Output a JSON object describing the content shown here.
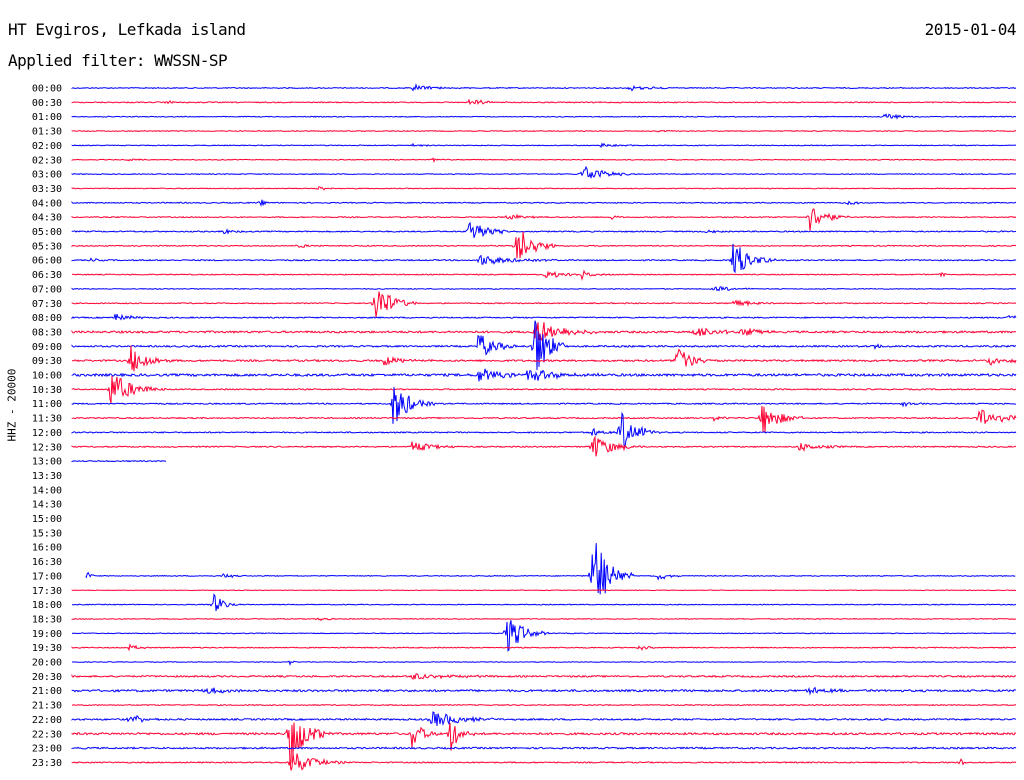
{
  "header": {
    "station": "HT Evgiros, Lefkada island",
    "date": "2015-01-04",
    "filter": "Applied filter: WWSSN-SP"
  },
  "chart_data": {
    "type": "line",
    "title": "HT Evgiros, Lefkada island",
    "date": "2015-01-04",
    "filter": "WWSSN-SP",
    "ylabel": "HHZ - 20000",
    "colors": {
      "even_row": "#0000ff",
      "odd_row": "#ff0033"
    },
    "rows": [
      {
        "time": "00:00",
        "start": 0,
        "end": 1,
        "noise": 0.5,
        "events": [
          {
            "x": 0.36,
            "amp": 0.35,
            "width": 0.02
          },
          {
            "x": 0.59,
            "amp": 0.3,
            "width": 0.02
          }
        ]
      },
      {
        "time": "00:30",
        "start": 0,
        "end": 1,
        "noise": 0.5,
        "events": [
          {
            "x": 0.42,
            "amp": 0.4,
            "width": 0.015
          },
          {
            "x": 0.1,
            "amp": 0.2,
            "width": 0.01
          }
        ]
      },
      {
        "time": "01:00",
        "start": 0,
        "end": 1,
        "noise": 0.4,
        "events": [
          {
            "x": 0.86,
            "amp": 0.45,
            "width": 0.015
          }
        ]
      },
      {
        "time": "01:30",
        "start": 0,
        "end": 1,
        "noise": 0.4,
        "events": [
          {
            "x": 0.62,
            "amp": 0.15,
            "width": 0.01
          }
        ]
      },
      {
        "time": "02:00",
        "start": 0,
        "end": 1,
        "noise": 0.4,
        "events": [
          {
            "x": 0.36,
            "amp": 0.2,
            "width": 0.01
          },
          {
            "x": 0.56,
            "amp": 0.2,
            "width": 0.02
          }
        ]
      },
      {
        "time": "02:30",
        "start": 0,
        "end": 1,
        "noise": 0.4,
        "events": [
          {
            "x": 0.06,
            "amp": 0.2,
            "width": 0.01
          },
          {
            "x": 0.38,
            "amp": 0.2,
            "width": 0.01
          }
        ]
      },
      {
        "time": "03:00",
        "start": 0,
        "end": 1,
        "noise": 0.4,
        "events": [
          {
            "x": 0.54,
            "amp": 1.0,
            "width": 0.02
          }
        ]
      },
      {
        "time": "03:30",
        "start": 0,
        "end": 1,
        "noise": 0.4,
        "events": [
          {
            "x": 0.26,
            "amp": 0.25,
            "width": 0.015
          }
        ]
      },
      {
        "time": "04:00",
        "start": 0,
        "end": 1,
        "noise": 0.5,
        "events": [
          {
            "x": 0.2,
            "amp": 0.4,
            "width": 0.005
          },
          {
            "x": 0.82,
            "amp": 0.2,
            "width": 0.02
          }
        ]
      },
      {
        "time": "04:30",
        "start": 0,
        "end": 1,
        "noise": 0.5,
        "events": [
          {
            "x": 0.46,
            "amp": 0.4,
            "width": 0.015
          },
          {
            "x": 0.57,
            "amp": 0.4,
            "width": 0.005
          },
          {
            "x": 0.78,
            "amp": 1.6,
            "width": 0.015
          }
        ]
      },
      {
        "time": "05:00",
        "start": 0,
        "end": 1,
        "noise": 0.6,
        "events": [
          {
            "x": 0.16,
            "amp": 0.3,
            "width": 0.01
          },
          {
            "x": 0.42,
            "amp": 1.6,
            "width": 0.015
          },
          {
            "x": 0.67,
            "amp": 0.3,
            "width": 0.01
          }
        ]
      },
      {
        "time": "05:30",
        "start": 0,
        "end": 1,
        "noise": 0.5,
        "events": [
          {
            "x": 0.24,
            "amp": 0.3,
            "width": 0.01
          },
          {
            "x": 0.47,
            "amp": 2.5,
            "width": 0.015
          }
        ]
      },
      {
        "time": "06:00",
        "start": 0,
        "end": 1,
        "noise": 0.6,
        "events": [
          {
            "x": 0.02,
            "amp": 0.3,
            "width": 0.005
          },
          {
            "x": 0.43,
            "amp": 0.6,
            "width": 0.03
          },
          {
            "x": 0.7,
            "amp": 2.3,
            "width": 0.015
          }
        ]
      },
      {
        "time": "06:30",
        "start": 0,
        "end": 1,
        "noise": 0.5,
        "events": [
          {
            "x": 0.5,
            "amp": 0.4,
            "width": 0.02
          },
          {
            "x": 0.54,
            "amp": 0.4,
            "width": 0.01
          },
          {
            "x": 0.92,
            "amp": 0.3,
            "width": 0.005
          }
        ]
      },
      {
        "time": "07:00",
        "start": 0,
        "end": 1,
        "noise": 0.4,
        "events": [
          {
            "x": 0.68,
            "amp": 0.3,
            "width": 0.02
          }
        ]
      },
      {
        "time": "07:30",
        "start": 0,
        "end": 1,
        "noise": 0.5,
        "events": [
          {
            "x": 0.32,
            "amp": 2.5,
            "width": 0.015
          },
          {
            "x": 0.7,
            "amp": 0.4,
            "width": 0.02
          }
        ]
      },
      {
        "time": "08:00",
        "start": 0,
        "end": 1,
        "noise": 0.6,
        "events": [
          {
            "x": 0.045,
            "amp": 0.5,
            "width": 0.015
          },
          {
            "x": 0.99,
            "amp": 0.3,
            "width": 0.01
          }
        ]
      },
      {
        "time": "08:30",
        "start": 0,
        "end": 1,
        "noise": 1.0,
        "events": [
          {
            "x": 0.49,
            "amp": 1.4,
            "width": 0.025
          },
          {
            "x": 0.66,
            "amp": 0.6,
            "width": 0.02
          },
          {
            "x": 0.71,
            "amp": 0.6,
            "width": 0.015
          }
        ]
      },
      {
        "time": "09:00",
        "start": 0,
        "end": 1,
        "noise": 0.8,
        "events": [
          {
            "x": 0.43,
            "amp": 1.5,
            "width": 0.015
          },
          {
            "x": 0.49,
            "amp": 4.0,
            "width": 0.012
          },
          {
            "x": 0.85,
            "amp": 0.4,
            "width": 0.005
          }
        ]
      },
      {
        "time": "09:30",
        "start": 0,
        "end": 1,
        "noise": 0.9,
        "events": [
          {
            "x": 0.062,
            "amp": 1.8,
            "width": 0.015
          },
          {
            "x": 0.33,
            "amp": 0.5,
            "width": 0.02
          },
          {
            "x": 0.64,
            "amp": 2.0,
            "width": 0.012
          },
          {
            "x": 0.97,
            "amp": 0.5,
            "width": 0.02
          }
        ]
      },
      {
        "time": "10:00",
        "start": 0,
        "end": 1,
        "noise": 1.2,
        "events": [
          {
            "x": 0.43,
            "amp": 0.8,
            "width": 0.02
          },
          {
            "x": 0.48,
            "amp": 0.8,
            "width": 0.03
          }
        ]
      },
      {
        "time": "10:30",
        "start": 0,
        "end": 1,
        "noise": 0.6,
        "events": [
          {
            "x": 0.04,
            "amp": 2.0,
            "width": 0.02
          }
        ]
      },
      {
        "time": "11:00",
        "start": 0,
        "end": 1,
        "noise": 0.6,
        "events": [
          {
            "x": 0.34,
            "amp": 2.5,
            "width": 0.015
          },
          {
            "x": 0.88,
            "amp": 0.3,
            "width": 0.01
          }
        ]
      },
      {
        "time": "11:30",
        "start": 0,
        "end": 1,
        "noise": 0.6,
        "events": [
          {
            "x": 0.73,
            "amp": 2.0,
            "width": 0.015
          },
          {
            "x": 0.96,
            "amp": 1.0,
            "width": 0.03
          },
          {
            "x": 0.68,
            "amp": 0.3,
            "width": 0.01
          }
        ]
      },
      {
        "time": "12:00",
        "start": 0,
        "end": 1,
        "noise": 0.6,
        "events": [
          {
            "x": 0.58,
            "amp": 2.3,
            "width": 0.015
          },
          {
            "x": 0.55,
            "amp": 0.5,
            "width": 0.01
          }
        ]
      },
      {
        "time": "12:30",
        "start": 0,
        "end": 1,
        "noise": 0.6,
        "events": [
          {
            "x": 0.36,
            "amp": 0.6,
            "width": 0.02
          },
          {
            "x": 0.55,
            "amp": 1.4,
            "width": 0.02
          },
          {
            "x": 0.77,
            "amp": 0.5,
            "width": 0.02
          }
        ]
      },
      {
        "time": "13:00",
        "start": 0,
        "end": 0.1,
        "noise": 0.5,
        "events": []
      },
      {
        "time": "13:30",
        "start": 0,
        "end": 0,
        "noise": 0,
        "events": []
      },
      {
        "time": "14:00",
        "start": 0,
        "end": 0,
        "noise": 0,
        "events": []
      },
      {
        "time": "14:30",
        "start": 0,
        "end": 0,
        "noise": 0,
        "events": []
      },
      {
        "time": "15:00",
        "start": 0,
        "end": 0,
        "noise": 0,
        "events": []
      },
      {
        "time": "15:30",
        "start": 0,
        "end": 0,
        "noise": 0,
        "events": []
      },
      {
        "time": "16:00",
        "start": 0,
        "end": 0,
        "noise": 0,
        "events": []
      },
      {
        "time": "16:30",
        "start": 0,
        "end": 0,
        "noise": 0,
        "events": []
      },
      {
        "time": "17:00",
        "start": 0.015,
        "end": 1,
        "noise": 0.4,
        "events": [
          {
            "x": 0.015,
            "amp": 1.0,
            "width": 0.003
          },
          {
            "x": 0.16,
            "amp": 0.3,
            "width": 0.01
          },
          {
            "x": 0.55,
            "amp": 4.8,
            "width": 0.015
          },
          {
            "x": 0.62,
            "amp": 0.5,
            "width": 0.01
          }
        ]
      },
      {
        "time": "17:30",
        "start": 0,
        "end": 1,
        "noise": 0.3,
        "events": []
      },
      {
        "time": "18:00",
        "start": 0,
        "end": 1,
        "noise": 0.4,
        "events": [
          {
            "x": 0.15,
            "amp": 1.1,
            "width": 0.01
          }
        ]
      },
      {
        "time": "18:30",
        "start": 0,
        "end": 1,
        "noise": 0.4,
        "events": [
          {
            "x": 0.26,
            "amp": 0.2,
            "width": 0.01
          }
        ]
      },
      {
        "time": "19:00",
        "start": 0,
        "end": 1,
        "noise": 0.4,
        "events": [
          {
            "x": 0.46,
            "amp": 2.2,
            "width": 0.015
          }
        ]
      },
      {
        "time": "19:30",
        "start": 0,
        "end": 1,
        "noise": 0.5,
        "events": [
          {
            "x": 0.06,
            "amp": 0.3,
            "width": 0.01
          },
          {
            "x": 0.6,
            "amp": 0.3,
            "width": 0.01
          }
        ]
      },
      {
        "time": "20:00",
        "start": 0,
        "end": 1,
        "noise": 0.3,
        "events": [
          {
            "x": 0.23,
            "amp": 0.4,
            "width": 0.003
          }
        ]
      },
      {
        "time": "20:30",
        "start": 0,
        "end": 1,
        "noise": 0.8,
        "events": [
          {
            "x": 0.36,
            "amp": 0.4,
            "width": 0.03
          }
        ]
      },
      {
        "time": "21:00",
        "start": 0,
        "end": 1,
        "noise": 1.0,
        "events": [
          {
            "x": 0.78,
            "amp": 0.4,
            "width": 0.02
          },
          {
            "x": 0.14,
            "amp": 0.4,
            "width": 0.02
          }
        ]
      },
      {
        "time": "21:30",
        "start": 0,
        "end": 1,
        "noise": 0.5,
        "events": []
      },
      {
        "time": "22:00",
        "start": 0,
        "end": 1,
        "noise": 0.8,
        "events": [
          {
            "x": 0.06,
            "amp": 0.5,
            "width": 0.015
          },
          {
            "x": 0.38,
            "amp": 0.9,
            "width": 0.03
          }
        ]
      },
      {
        "time": "22:30",
        "start": 0,
        "end": 1,
        "noise": 1.0,
        "events": [
          {
            "x": 0.23,
            "amp": 3.5,
            "width": 0.015
          },
          {
            "x": 0.36,
            "amp": 1.8,
            "width": 0.01
          },
          {
            "x": 0.4,
            "amp": 2.0,
            "width": 0.01
          }
        ]
      },
      {
        "time": "23:00",
        "start": 0,
        "end": 1,
        "noise": 0.8,
        "events": []
      },
      {
        "time": "23:30",
        "start": 0,
        "end": 1,
        "noise": 0.6,
        "events": [
          {
            "x": 0.23,
            "amp": 1.5,
            "width": 0.02
          },
          {
            "x": 0.94,
            "amp": 0.5,
            "width": 0.005
          }
        ]
      }
    ]
  }
}
